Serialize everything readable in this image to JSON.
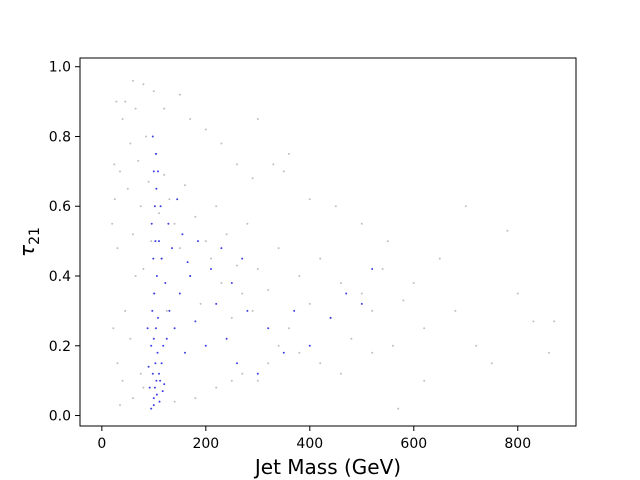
{
  "chart_data": {
    "type": "scatter",
    "title": "",
    "xlabel": "Jet Mass (GeV)",
    "ylabel_base": "τ",
    "ylabel_sub": "21",
    "xlim": [
      -42,
      912
    ],
    "ylim": [
      -0.03,
      1.025
    ],
    "x_ticks": [
      0,
      200,
      400,
      600,
      800
    ],
    "y_ticks": [
      "0.0",
      "0.2",
      "0.4",
      "0.6",
      "0.8",
      "1.0"
    ],
    "grid": false,
    "legend": "none",
    "series": [
      {
        "color": "#808080",
        "marker_alpha": 0.5,
        "points": [
          [
            20,
            0.55
          ],
          [
            25,
            0.62
          ],
          [
            30,
            0.48
          ],
          [
            35,
            0.7
          ],
          [
            40,
            0.85
          ],
          [
            45,
            0.9
          ],
          [
            50,
            0.65
          ],
          [
            55,
            0.78
          ],
          [
            60,
            0.52
          ],
          [
            65,
            0.88
          ],
          [
            70,
            0.73
          ],
          [
            75,
            0.6
          ],
          [
            80,
            0.42
          ],
          [
            85,
            0.8
          ],
          [
            90,
            0.67
          ],
          [
            95,
            0.5
          ],
          [
            100,
            0.35
          ],
          [
            105,
            0.75
          ],
          [
            110,
            0.58
          ],
          [
            115,
            0.45
          ],
          [
            120,
            0.69
          ],
          [
            125,
            0.3
          ],
          [
            130,
            0.62
          ],
          [
            140,
            0.55
          ],
          [
            150,
            0.48
          ],
          [
            160,
            0.66
          ],
          [
            170,
            0.4
          ],
          [
            180,
            0.57
          ],
          [
            190,
            0.32
          ],
          [
            200,
            0.5
          ],
          [
            210,
            0.45
          ],
          [
            220,
            0.6
          ],
          [
            230,
            0.38
          ],
          [
            240,
            0.52
          ],
          [
            250,
            0.28
          ],
          [
            260,
            0.43
          ],
          [
            270,
            0.35
          ],
          [
            280,
            0.55
          ],
          [
            290,
            0.3
          ],
          [
            300,
            0.42
          ],
          [
            320,
            0.36
          ],
          [
            340,
            0.48
          ],
          [
            360,
            0.25
          ],
          [
            380,
            0.4
          ],
          [
            400,
            0.32
          ],
          [
            420,
            0.45
          ],
          [
            440,
            0.28
          ],
          [
            460,
            0.38
          ],
          [
            480,
            0.22
          ],
          [
            500,
            0.35
          ],
          [
            520,
            0.3
          ],
          [
            540,
            0.42
          ],
          [
            560,
            0.2
          ],
          [
            580,
            0.33
          ],
          [
            600,
            0.38
          ],
          [
            620,
            0.25
          ],
          [
            650,
            0.45
          ],
          [
            680,
            0.3
          ],
          [
            700,
            0.6
          ],
          [
            720,
            0.2
          ],
          [
            750,
            0.15
          ],
          [
            780,
            0.53
          ],
          [
            800,
            0.35
          ],
          [
            830,
            0.27
          ],
          [
            860,
            0.18
          ],
          [
            870,
            0.27
          ],
          [
            30,
            0.15
          ],
          [
            40,
            0.1
          ],
          [
            60,
            0.05
          ],
          [
            80,
            0.08
          ],
          [
            45,
            0.3
          ],
          [
            55,
            0.22
          ],
          [
            65,
            0.4
          ],
          [
            75,
            0.12
          ],
          [
            150,
            0.92
          ],
          [
            120,
            0.88
          ],
          [
            100,
            0.93
          ],
          [
            80,
            0.95
          ],
          [
            60,
            0.96
          ],
          [
            170,
            0.85
          ],
          [
            200,
            0.82
          ],
          [
            230,
            0.78
          ],
          [
            260,
            0.72
          ],
          [
            290,
            0.68
          ],
          [
            330,
            0.72
          ],
          [
            360,
            0.75
          ],
          [
            400,
            0.62
          ],
          [
            450,
            0.6
          ],
          [
            500,
            0.55
          ],
          [
            550,
            0.5
          ],
          [
            300,
            0.85
          ],
          [
            350,
            0.7
          ],
          [
            250,
            0.1
          ],
          [
            220,
            0.08
          ],
          [
            180,
            0.05
          ],
          [
            140,
            0.04
          ],
          [
            35,
            0.03
          ],
          [
            22,
            0.25
          ],
          [
            24,
            0.72
          ],
          [
            28,
            0.9
          ],
          [
            300,
            0.1
          ],
          [
            320,
            0.15
          ],
          [
            270,
            0.12
          ],
          [
            340,
            0.2
          ],
          [
            380,
            0.18
          ],
          [
            420,
            0.15
          ],
          [
            460,
            0.12
          ],
          [
            520,
            0.18
          ],
          [
            570,
            0.02
          ],
          [
            620,
            0.1
          ]
        ]
      },
      {
        "color": "#1f1fe0",
        "marker_alpha": 0.85,
        "points": [
          [
            100,
            0.05
          ],
          [
            102,
            0.08
          ],
          [
            105,
            0.1
          ],
          [
            98,
            0.12
          ],
          [
            103,
            0.15
          ],
          [
            107,
            0.18
          ],
          [
            95,
            0.2
          ],
          [
            100,
            0.22
          ],
          [
            104,
            0.25
          ],
          [
            108,
            0.28
          ],
          [
            97,
            0.3
          ],
          [
            101,
            0.35
          ],
          [
            106,
            0.4
          ],
          [
            99,
            0.45
          ],
          [
            103,
            0.5
          ],
          [
            96,
            0.55
          ],
          [
            102,
            0.6
          ],
          [
            105,
            0.65
          ],
          [
            100,
            0.7
          ],
          [
            98,
            0.8
          ],
          [
            104,
            0.75
          ],
          [
            110,
            0.12
          ],
          [
            112,
            0.1
          ],
          [
            115,
            0.15
          ],
          [
            92,
            0.08
          ],
          [
            90,
            0.14
          ],
          [
            118,
            0.2
          ],
          [
            120,
            0.09
          ],
          [
            125,
            0.22
          ],
          [
            88,
            0.25
          ],
          [
            130,
            0.3
          ],
          [
            140,
            0.25
          ],
          [
            150,
            0.35
          ],
          [
            160,
            0.18
          ],
          [
            170,
            0.4
          ],
          [
            180,
            0.27
          ],
          [
            200,
            0.2
          ],
          [
            220,
            0.32
          ],
          [
            240,
            0.22
          ],
          [
            260,
            0.15
          ],
          [
            280,
            0.3
          ],
          [
            300,
            0.12
          ],
          [
            320,
            0.25
          ],
          [
            350,
            0.18
          ],
          [
            370,
            0.3
          ],
          [
            400,
            0.2
          ],
          [
            440,
            0.28
          ],
          [
            470,
            0.35
          ],
          [
            500,
            0.32
          ],
          [
            520,
            0.42
          ],
          [
            110,
            0.5
          ],
          [
            113,
            0.6
          ],
          [
            108,
            0.7
          ],
          [
            115,
            0.45
          ],
          [
            122,
            0.38
          ],
          [
            128,
            0.55
          ],
          [
            135,
            0.48
          ],
          [
            145,
            0.62
          ],
          [
            155,
            0.52
          ],
          [
            165,
            0.44
          ],
          [
            185,
            0.5
          ],
          [
            210,
            0.42
          ],
          [
            230,
            0.48
          ],
          [
            250,
            0.38
          ],
          [
            270,
            0.45
          ],
          [
            95,
            0.02
          ],
          [
            100,
            0.03
          ],
          [
            106,
            0.06
          ],
          [
            111,
            0.04
          ],
          [
            117,
            0.07
          ]
        ]
      }
    ]
  }
}
